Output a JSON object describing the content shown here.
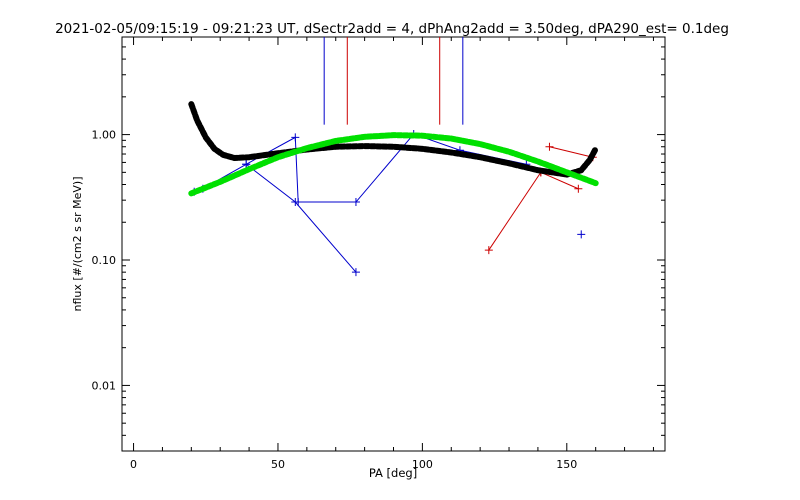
{
  "chart_data": {
    "type": "scatter",
    "title": "2021-02-05/09:15:19 - 09:21:23 UT, dSectr2add = 4, dPhAng2add = 3.50deg, dPA290_est=   0.1deg",
    "xlabel": "PA [deg]",
    "ylabel": "nflux [#/(cm2 s sr MeV)]",
    "xlim": [
      -4,
      184
    ],
    "ylim": [
      0.003,
      6
    ],
    "y_scale": "log",
    "x_ticks": [
      0,
      50,
      100,
      150
    ],
    "x_tick_labels": [
      "0",
      "50",
      "100",
      "150"
    ],
    "y_ticks": [
      0.01,
      0.1,
      1.0
    ],
    "y_tick_labels": [
      "0.01",
      "0.10",
      "1.00"
    ],
    "grid": false,
    "colors": {
      "blue": "#0000cc",
      "red": "#cc0000",
      "black": "#000000",
      "green": "#00e000"
    },
    "series": [
      {
        "color": "#0000cc",
        "style": "line-plus",
        "x": [
          21,
          24,
          39,
          56,
          57,
          77,
          97,
          113,
          136
        ],
        "y": [
          0.35,
          0.37,
          0.58,
          0.95,
          0.29,
          0.29,
          1.01,
          0.75,
          0.58
        ]
      },
      {
        "color": "#0000cc",
        "style": "line-plus",
        "x": [
          39,
          56,
          77
        ],
        "y": [
          0.58,
          0.29,
          0.08
        ]
      },
      {
        "color": "#0000cc",
        "style": "plus",
        "x": [
          155
        ],
        "y": [
          0.16
        ]
      },
      {
        "color": "#cc0000",
        "style": "line-plus",
        "x": [
          123,
          141
        ],
        "y": [
          0.12,
          0.5
        ]
      },
      {
        "color": "#cc0000",
        "style": "line-plus",
        "x": [
          141,
          154
        ],
        "y": [
          0.5,
          0.37
        ]
      },
      {
        "color": "#cc0000",
        "style": "line-plus",
        "x": [
          144,
          159
        ],
        "y": [
          0.8,
          0.66
        ]
      },
      {
        "color": "#000000",
        "style": "thick-dotted",
        "x": [
          20,
          22,
          25,
          28,
          31,
          35,
          40,
          50,
          60,
          70,
          80,
          90,
          100,
          110,
          120,
          130,
          140,
          150,
          155,
          158,
          160
        ],
        "y": [
          1.75,
          1.3,
          0.95,
          0.77,
          0.69,
          0.65,
          0.66,
          0.71,
          0.76,
          0.8,
          0.81,
          0.8,
          0.77,
          0.72,
          0.66,
          0.59,
          0.52,
          0.48,
          0.52,
          0.63,
          0.77
        ]
      },
      {
        "color": "#00e000",
        "style": "thick-dotted",
        "x": [
          20,
          30,
          40,
          50,
          60,
          70,
          80,
          90,
          100,
          110,
          120,
          130,
          140,
          150,
          160
        ],
        "y": [
          0.34,
          0.42,
          0.53,
          0.66,
          0.78,
          0.89,
          0.96,
          0.99,
          0.98,
          0.93,
          0.84,
          0.73,
          0.61,
          0.5,
          0.41
        ]
      }
    ],
    "vlines": [
      {
        "x": 66,
        "color": "#0000cc"
      },
      {
        "x": 74,
        "color": "#cc0000"
      },
      {
        "x": 106,
        "color": "#cc0000"
      },
      {
        "x": 114,
        "color": "#0000cc"
      }
    ],
    "vline_y_range": [
      1.2,
      6
    ]
  }
}
